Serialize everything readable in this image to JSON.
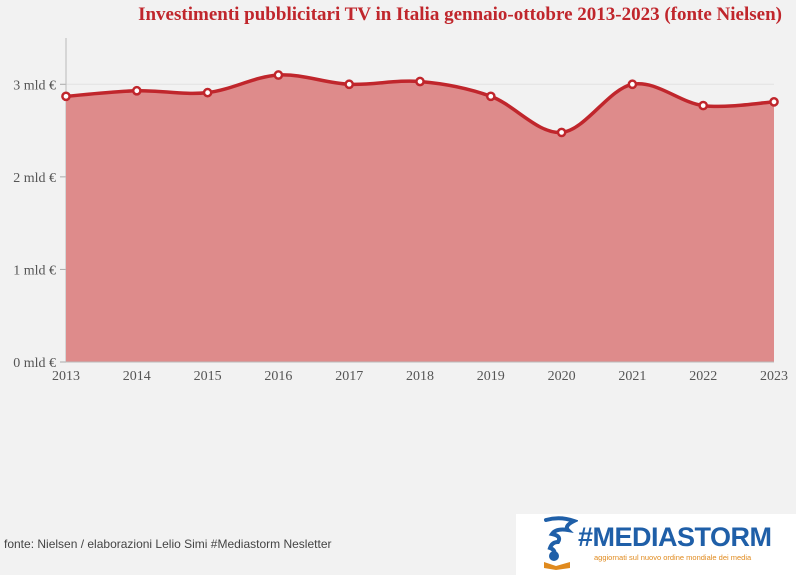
{
  "chart_data": {
    "type": "area",
    "title": "Investimenti pubblicitari TV in Italia gennaio-ottobre 2013-2023 (fonte Nielsen)",
    "categories": [
      "2013",
      "2014",
      "2015",
      "2016",
      "2017",
      "2018",
      "2019",
      "2020",
      "2021",
      "2022",
      "2023"
    ],
    "series": [
      {
        "values": [
          2.87,
          2.93,
          2.91,
          3.1,
          3.0,
          3.03,
          2.87,
          2.48,
          3.0,
          2.77,
          2.81
        ]
      }
    ],
    "ylim": [
      0,
      3.5
    ],
    "yticks": [
      0,
      1,
      2,
      3
    ],
    "ytick_labels": [
      "0 mld €",
      "1 mld €",
      "2 mld €",
      "3 mld €"
    ],
    "xlabel": "",
    "ylabel": "",
    "grid": true,
    "colors": {
      "line": "#c0262c",
      "fill": "#de8b8b",
      "marker_fill": "#ffffff",
      "title": "#c0262c"
    }
  },
  "footer": {
    "source": "fonte: Nielsen / elaborazioni Lelio Simi #Mediastorm Nesletter"
  },
  "logo": {
    "wordmark": "#MEDIASTORM",
    "tagline": "aggiornati sul nuovo ordine mondiale dei media",
    "icon": "tornado-reader-icon"
  }
}
